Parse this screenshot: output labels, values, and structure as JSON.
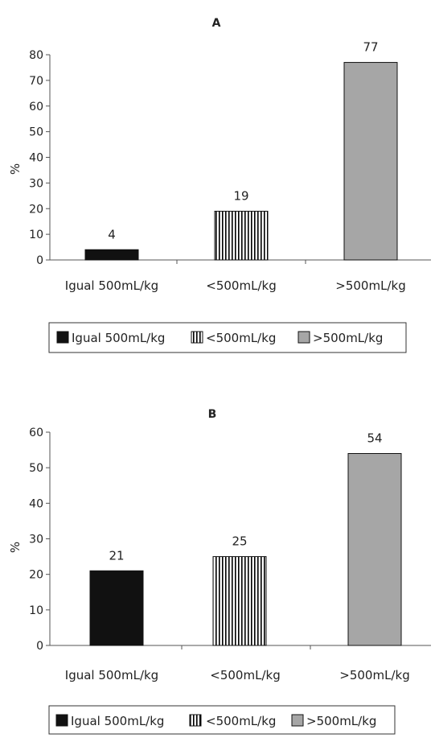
{
  "chart_data": [
    {
      "type": "bar",
      "title": "A",
      "ylabel": "%",
      "xlabel": "",
      "ylim": [
        0,
        80
      ],
      "yticks": [
        0,
        10,
        20,
        30,
        40,
        50,
        60,
        70,
        80
      ],
      "categories": [
        "Igual 500mL/kg",
        "<500mL/kg",
        ">500mL/kg"
      ],
      "values": [
        4,
        19,
        77
      ],
      "data_labels": [
        "4",
        "19",
        "77"
      ],
      "fills": [
        "solid",
        "vertical-stripes",
        "solid"
      ],
      "colors": [
        "#111111",
        "#000000",
        "#a6a6a6"
      ],
      "legend": {
        "placement": "bottom",
        "entries": [
          "Igual 500mL/kg",
          "<500mL/kg",
          ">500mL/kg"
        ]
      }
    },
    {
      "type": "bar",
      "title": "B",
      "ylabel": "%",
      "xlabel": "",
      "ylim": [
        0,
        60
      ],
      "yticks": [
        0,
        10,
        20,
        30,
        40,
        50,
        60
      ],
      "categories": [
        "Igual 500mL/kg",
        "<500mL/kg",
        ">500mL/kg"
      ],
      "values": [
        21,
        25,
        54
      ],
      "data_labels": [
        "21",
        "25",
        "54"
      ],
      "fills": [
        "solid",
        "vertical-stripes",
        "solid"
      ],
      "colors": [
        "#111111",
        "#000000",
        "#a6a6a6"
      ],
      "legend": {
        "placement": "bottom",
        "entries": [
          "Igual 500mL/kg",
          "<500mL/kg",
          ">500mL/kg"
        ]
      }
    }
  ]
}
